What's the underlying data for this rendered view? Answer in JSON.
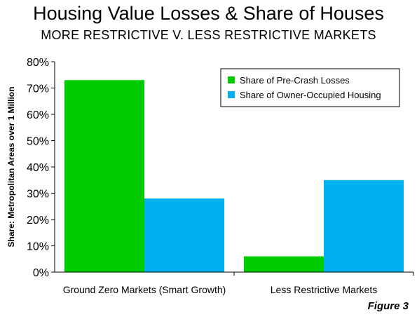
{
  "chart_data": {
    "type": "bar",
    "title": "Housing Value Losses & Share of Houses",
    "subtitle": "MORE RESTRICTIVE V. LESS RESTRICTIVE MARKETS",
    "ylabel": "Share: Metropolitan Areas over 1 Million",
    "xlabel": "",
    "categories": [
      "Ground Zero Markets (Smart Growth)",
      "Less Restrictive Markets"
    ],
    "series": [
      {
        "name": "Share of Pre-Crash Losses",
        "color": "#00cc00",
        "values": [
          73,
          6
        ]
      },
      {
        "name": "Share of Owner-Occupied Housing",
        "color": "#00b0f0",
        "values": [
          28,
          35
        ]
      }
    ],
    "ylim": [
      0,
      80
    ],
    "yticks": [
      "0%",
      "10%",
      "20%",
      "30%",
      "40%",
      "50%",
      "60%",
      "70%",
      "80%"
    ],
    "legend": "top-right",
    "grid": false
  },
  "figure_label": "Figure 3"
}
